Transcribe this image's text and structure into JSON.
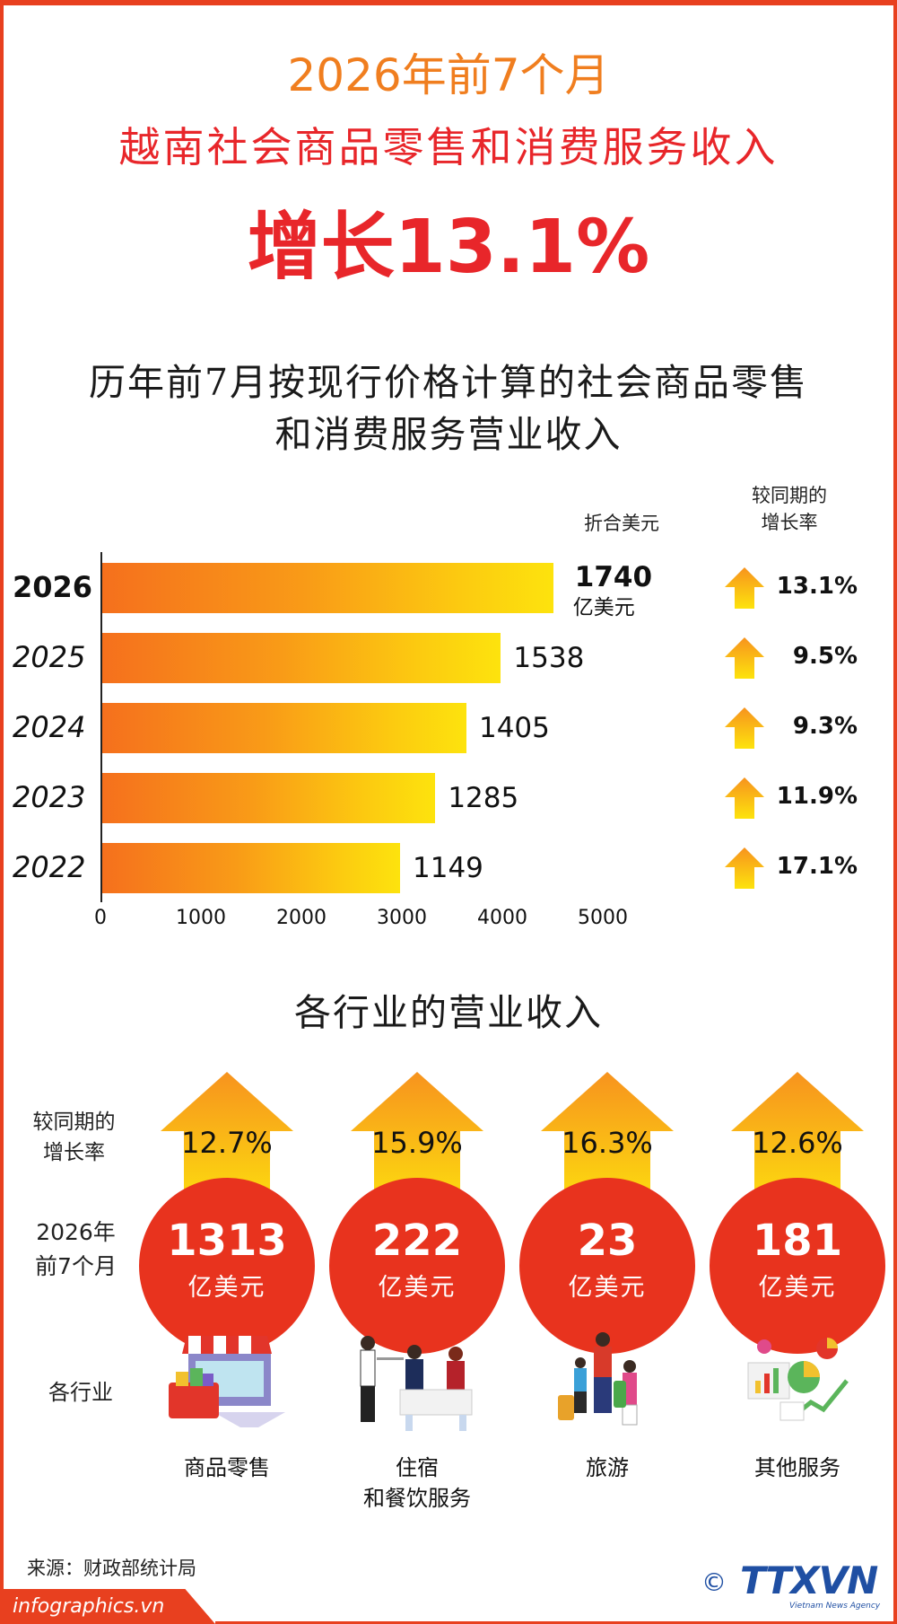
{
  "header": {
    "line1": "2026年前7个月",
    "line2": "越南社会商品零售和消费服务收入",
    "line3": "增长13.1%"
  },
  "section1": {
    "title_line1": "历年前7月按现行价格计算的社会商品零售",
    "title_line2": "和消费服务营业收入",
    "col_usd": "折合美元",
    "col_growth_line1": "较同期的",
    "col_growth_line2": "增长率",
    "unit": "亿美元"
  },
  "chart_data": {
    "type": "bar",
    "orientation": "horizontal",
    "categories": [
      "2026",
      "2025",
      "2024",
      "2023",
      "2022"
    ],
    "values": [
      1740,
      1538,
      1405,
      1285,
      1149
    ],
    "growth": [
      "13.1%",
      "9.5%",
      "9.3%",
      "11.9%",
      "17.1%"
    ],
    "xticks": [
      "0",
      "1000",
      "2000",
      "3000",
      "4000",
      "5000"
    ],
    "xlim": [
      0,
      5000
    ],
    "grid": false,
    "bar_colors": [
      "#f5701d",
      "#fde30d"
    ]
  },
  "section2": {
    "title": "各行业的营业收入",
    "label_growth_line1": "较同期的",
    "label_growth_line2": "增长率",
    "label_year_line1": "2026年",
    "label_year_line2": "前7个月",
    "label_sector": "各行业",
    "sectors": [
      {
        "growth": "12.7%",
        "value": "1313",
        "unit": "亿美元",
        "name_line1": "商品零售",
        "name_line2": "",
        "icon": "shop-basket-icon"
      },
      {
        "growth": "15.9%",
        "value": "222",
        "unit": "亿美元",
        "name_line1": "住宿",
        "name_line2": "和餐饮服务",
        "icon": "restaurant-dining-icon"
      },
      {
        "growth": "16.3%",
        "value": "23",
        "unit": "亿美元",
        "name_line1": "旅游",
        "name_line2": "",
        "icon": "travelers-luggage-icon"
      },
      {
        "growth": "12.6%",
        "value": "181",
        "unit": "亿美元",
        "name_line1": "其他服务",
        "name_line2": "",
        "icon": "business-charts-icon"
      }
    ]
  },
  "footer": {
    "source": "来源：财政部统计局",
    "url": "infographics.vn",
    "logo": "TTXVN",
    "logo_sub": "Vietnam News Agency",
    "copyright": "©"
  },
  "colors": {
    "accent_red": "#e8262a",
    "accent_orange": "#f07e1f",
    "circle_red": "#e8331e",
    "logo_blue": "#1f4fa3"
  }
}
